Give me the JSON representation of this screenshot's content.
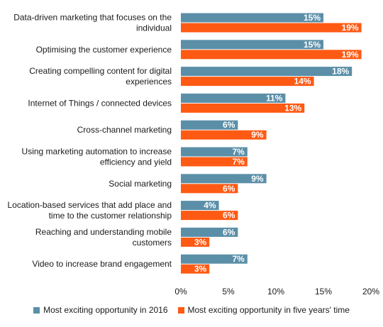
{
  "chart_data": {
    "type": "bar",
    "orientation": "horizontal",
    "categories": [
      [
        "Data-driven marketing that focuses on the",
        "individual"
      ],
      [
        "Optimising the customer experience"
      ],
      [
        "Creating compelling content for digital",
        "experiences"
      ],
      [
        "Internet of Things / connected devices"
      ],
      [
        "Cross-channel marketing"
      ],
      [
        "Using marketing automation to increase",
        "efficiency and yield"
      ],
      [
        "Social marketing"
      ],
      [
        "Location-based services that add place and",
        "time to the customer relationship"
      ],
      [
        "Reaching and understanding mobile",
        "customers"
      ],
      [
        "Video to increase brand engagement"
      ]
    ],
    "series": [
      {
        "name": "Most exciting opportunity in 2016",
        "color": "#5b8fa8",
        "values": [
          15,
          15,
          18,
          11,
          6,
          7,
          9,
          4,
          6,
          7
        ]
      },
      {
        "name": "Most exciting opportunity in five years' time",
        "color": "#ff5a14",
        "values": [
          19,
          19,
          14,
          13,
          9,
          7,
          6,
          6,
          3,
          3
        ]
      }
    ],
    "value_suffix": "%",
    "xlim": [
      0,
      20
    ],
    "ticks": [
      0,
      5,
      10,
      15,
      20
    ],
    "tick_labels": [
      "0%",
      "5%",
      "10%",
      "15%",
      "20%"
    ],
    "grid": false,
    "legend_position": "bottom"
  }
}
